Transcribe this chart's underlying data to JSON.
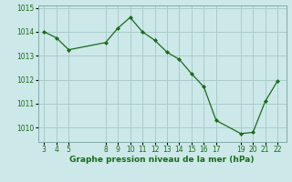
{
  "xlabel": "Graphe pression niveau de la mer (hPa)",
  "background_color": "#cce8e8",
  "grid_color": "#aacccc",
  "line_color": "#1a6b1a",
  "marker_color": "#1a6b1a",
  "x": [
    3,
    4,
    5,
    8,
    9,
    10,
    11,
    12,
    13,
    14,
    15,
    16,
    17,
    19,
    20,
    21,
    22
  ],
  "y": [
    1014.0,
    1013.75,
    1013.25,
    1013.55,
    1014.15,
    1014.6,
    1014.0,
    1013.65,
    1013.15,
    1012.85,
    1012.25,
    1011.7,
    1010.3,
    1009.75,
    1009.8,
    1011.1,
    1011.95
  ],
  "ylim": [
    1009.4,
    1015.1
  ],
  "xlim": [
    2.5,
    22.7
  ],
  "xticks": [
    3,
    4,
    5,
    8,
    9,
    10,
    11,
    12,
    13,
    14,
    15,
    16,
    17,
    19,
    20,
    21,
    22
  ],
  "yticks": [
    1010,
    1011,
    1012,
    1013,
    1014,
    1015
  ],
  "tick_fontsize": 5.5,
  "xlabel_fontsize": 6.5
}
